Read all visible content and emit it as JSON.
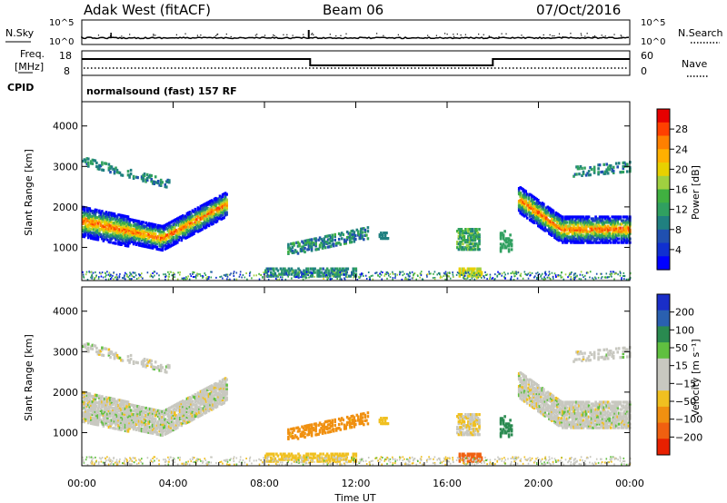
{
  "header": {
    "station": "Adak West (fitACF)",
    "beam": "Beam 06",
    "date": "07/Oct/2016"
  },
  "top_panel": {
    "nsky_label": "N.Sky",
    "nsearch_label": "N.Search",
    "left_ticks": [
      "10^5",
      "10^0"
    ],
    "right_ticks": [
      "10^5",
      "10^0"
    ]
  },
  "freq_panel": {
    "label_line1": "Freq.",
    "label_line2": "[MHz]",
    "left_ticks": [
      "18",
      "8"
    ],
    "right_ticks": [
      "60",
      "0"
    ],
    "nave_label": "Nave",
    "freq_steps": [
      {
        "from": 0,
        "to": 10.0,
        "level": "high"
      },
      {
        "from": 10.0,
        "to": 18.0,
        "level": "low"
      },
      {
        "from": 18.0,
        "to": 24.0,
        "level": "high"
      }
    ]
  },
  "cpid": {
    "label": "CPID",
    "value": "normalsound (fast) 157 RF"
  },
  "chart_data": [
    {
      "type": "heatmap",
      "name": "power",
      "ylabel": "Slant Range [km]",
      "xlabel": "",
      "y_ticks": [
        1000,
        2000,
        3000,
        4000
      ],
      "ylim": [
        180,
        4600
      ],
      "xlim": [
        0,
        24
      ],
      "colorbar_label": "Power [dB]",
      "colorbar_ticks": [
        "28",
        "24",
        "20",
        "16",
        "12",
        "8",
        "4"
      ],
      "colorbar_colors": [
        "#e60000",
        "#ff4000",
        "#ff8000",
        "#ffb000",
        "#e8d000",
        "#a0d040",
        "#40b040",
        "#30a060",
        "#208080",
        "#2050b0",
        "#1030d0",
        "#0000ff"
      ]
    },
    {
      "type": "heatmap",
      "name": "velocity",
      "ylabel": "Slant Range [km]",
      "xlabel": "Time UT",
      "y_ticks": [
        1000,
        2000,
        3000,
        4000
      ],
      "ylim": [
        180,
        4600
      ],
      "xlim": [
        0,
        24
      ],
      "x_tick_labels": [
        "00:00",
        "04:00",
        "08:00",
        "12:00",
        "16:00",
        "20:00",
        "00:00"
      ],
      "colorbar_label": "Velocity [m s⁻¹]",
      "colorbar_ticks": [
        "200",
        "100",
        "50",
        "15",
        "−15",
        "−50",
        "−100",
        "−200"
      ],
      "colorbar_colors": [
        "#1a2ec8",
        "#2a60b0",
        "#2a8a50",
        "#60c040",
        "#c8c8c0",
        "#c8c8c0",
        "#f0c020",
        "#f09010",
        "#f06010",
        "#e82000"
      ]
    }
  ]
}
